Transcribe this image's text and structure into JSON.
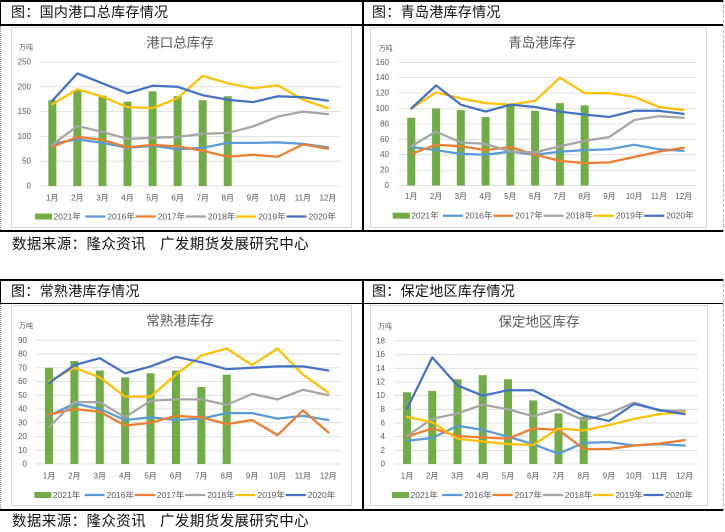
{
  "panels": [
    {
      "caption": "图：国内港口总库存情况"
    },
    {
      "caption": "图：青岛港库存情况"
    },
    {
      "caption": "图：常熟港库存情况"
    },
    {
      "caption": "图：保定地区库存情况"
    }
  ],
  "sources": [
    {
      "label": "数据来源：隆众资讯",
      "org": "广发期货发展研究中心"
    },
    {
      "label": "数据来源：隆众资讯",
      "org": "广发期货发展研究中心"
    }
  ],
  "chart_data": [
    {
      "type": "line",
      "title": "港口总库存",
      "xlabel": "",
      "ylabel": "万吨",
      "categories": [
        "1月",
        "2月",
        "3月",
        "4月",
        "5月",
        "6月",
        "7月",
        "8月",
        "9月",
        "10月",
        "11月",
        "12月"
      ],
      "ylim": [
        0,
        250
      ],
      "yticks": [
        0,
        50,
        100,
        150,
        200,
        250
      ],
      "grid": true,
      "legend": "bottom",
      "series": [
        {
          "name": "2021年",
          "kind": "bar",
          "color": "#70AD47",
          "values": [
            173,
            193,
            182,
            170,
            191,
            181,
            173,
            181,
            null,
            null,
            null,
            null
          ]
        },
        {
          "name": "2016年",
          "kind": "line",
          "color": "#5B9BD5",
          "values": [
            85,
            94,
            87,
            77,
            81,
            74,
            77,
            87,
            87,
            88,
            85,
            78
          ]
        },
        {
          "name": "2017年",
          "kind": "line",
          "color": "#ED7D31",
          "values": [
            79,
            99,
            93,
            78,
            83,
            80,
            71,
            59,
            63,
            59,
            84,
            75
          ]
        },
        {
          "name": "2018年",
          "kind": "line",
          "color": "#A5A5A5",
          "values": [
            83,
            121,
            109,
            95,
            97,
            99,
            105,
            107,
            120,
            140,
            150,
            145
          ]
        },
        {
          "name": "2019年",
          "kind": "line",
          "color": "#FFC000",
          "values": [
            165,
            195,
            180,
            159,
            157,
            177,
            222,
            207,
            197,
            203,
            174,
            157
          ]
        },
        {
          "name": "2020年",
          "kind": "line",
          "color": "#4472C4",
          "values": [
            172,
            227,
            207,
            187,
            202,
            200,
            183,
            174,
            169,
            181,
            179,
            172
          ]
        }
      ]
    },
    {
      "type": "line",
      "title": "青岛港库存",
      "xlabel": "",
      "ylabel": "万吨",
      "categories": [
        "1月",
        "2月",
        "3月",
        "4月",
        "5月",
        "6月",
        "7月",
        "8月",
        "9月",
        "10月",
        "11月",
        "12月"
      ],
      "ylim": [
        0,
        160
      ],
      "yticks": [
        0,
        20,
        40,
        60,
        80,
        100,
        120,
        140,
        160
      ],
      "grid": true,
      "legend": "bottom",
      "series": [
        {
          "name": "2021年",
          "kind": "bar",
          "color": "#70AD47",
          "values": [
            88,
            100,
            98,
            89,
            106,
            97,
            107,
            104,
            null,
            null,
            null,
            null
          ]
        },
        {
          "name": "2016年",
          "kind": "line",
          "color": "#5B9BD5",
          "values": [
            50,
            46,
            41,
            40,
            44,
            40,
            44,
            46,
            47,
            53,
            47,
            45
          ]
        },
        {
          "name": "2017年",
          "kind": "line",
          "color": "#ED7D31",
          "values": [
            41,
            53,
            51,
            46,
            50,
            40,
            32,
            29,
            30,
            37,
            44,
            49
          ]
        },
        {
          "name": "2018年",
          "kind": "line",
          "color": "#A5A5A5",
          "values": [
            51,
            70,
            56,
            54,
            44,
            43,
            51,
            58,
            63,
            85,
            90,
            88
          ]
        },
        {
          "name": "2019年",
          "kind": "line",
          "color": "#FFC000",
          "values": [
            100,
            121,
            113,
            107,
            105,
            110,
            140,
            120,
            120,
            115,
            102,
            98
          ]
        },
        {
          "name": "2020年",
          "kind": "line",
          "color": "#4472C4",
          "values": [
            100,
            130,
            105,
            96,
            105,
            102,
            96,
            92,
            89,
            97,
            97,
            93
          ]
        }
      ]
    },
    {
      "type": "line",
      "title": "常熟港库存",
      "xlabel": "",
      "ylabel": "万吨",
      "categories": [
        "1月",
        "2月",
        "3月",
        "4月",
        "5月",
        "6月",
        "7月",
        "8月",
        "9月",
        "10月",
        "11月",
        "12月"
      ],
      "ylim": [
        0,
        90
      ],
      "yticks": [
        0,
        10,
        20,
        30,
        40,
        50,
        60,
        70,
        80,
        90
      ],
      "grid": true,
      "legend": "bottom",
      "series": [
        {
          "name": "2021年",
          "kind": "bar",
          "color": "#70AD47",
          "values": [
            70,
            75,
            68,
            63,
            66,
            68,
            56,
            65,
            null,
            null,
            null,
            null
          ]
        },
        {
          "name": "2016年",
          "kind": "line",
          "color": "#5B9BD5",
          "values": [
            35,
            44,
            40,
            32,
            34,
            32,
            33,
            37,
            37,
            33,
            35,
            32
          ]
        },
        {
          "name": "2017年",
          "kind": "line",
          "color": "#ED7D31",
          "values": [
            36,
            40,
            38,
            28,
            30,
            35,
            34,
            29,
            32,
            21,
            39,
            23
          ]
        },
        {
          "name": "2018年",
          "kind": "line",
          "color": "#A5A5A5",
          "values": [
            27,
            45,
            45,
            34,
            46,
            47,
            47,
            43,
            51,
            47,
            54,
            50
          ]
        },
        {
          "name": "2019年",
          "kind": "line",
          "color": "#FFC000",
          "values": [
            60,
            70,
            63,
            49,
            49,
            65,
            79,
            84,
            72,
            84,
            65,
            52
          ]
        },
        {
          "name": "2020年",
          "kind": "line",
          "color": "#4472C4",
          "values": [
            59,
            72,
            77,
            66,
            71,
            78,
            74,
            69,
            70,
            71,
            71,
            68
          ]
        }
      ]
    },
    {
      "type": "line",
      "title": "保定地区库存",
      "xlabel": "",
      "ylabel": "万吨",
      "categories": [
        "1月",
        "2月",
        "3月",
        "4月",
        "5月",
        "6月",
        "7月",
        "8月",
        "9月",
        "10月",
        "11月",
        "12月"
      ],
      "ylim": [
        0,
        18
      ],
      "yticks": [
        0,
        2,
        4,
        6,
        8,
        10,
        12,
        14,
        16,
        18
      ],
      "grid": true,
      "legend": "bottom",
      "series": [
        {
          "name": "2021年",
          "kind": "bar",
          "color": "#70AD47",
          "values": [
            10.5,
            10.7,
            12.4,
            13.0,
            12.4,
            9.3,
            7.4,
            6.9,
            null,
            null,
            null,
            null
          ]
        },
        {
          "name": "2016年",
          "kind": "line",
          "color": "#5B9BD5",
          "values": [
            3.4,
            3.8,
            5.6,
            5.0,
            4.0,
            2.9,
            1.5,
            3.1,
            3.2,
            2.7,
            2.9,
            2.7
          ]
        },
        {
          "name": "2017年",
          "kind": "line",
          "color": "#ED7D31",
          "values": [
            4.0,
            5.2,
            4.1,
            3.9,
            3.7,
            5.2,
            5.0,
            2.2,
            2.2,
            2.7,
            3.0,
            3.5
          ]
        },
        {
          "name": "2018年",
          "kind": "line",
          "color": "#A5A5A5",
          "values": [
            4.1,
            6.6,
            7.4,
            8.7,
            8.0,
            7.0,
            8.0,
            6.4,
            7.4,
            9.0,
            7.8,
            7.8
          ]
        },
        {
          "name": "2019年",
          "kind": "line",
          "color": "#FFC000",
          "values": [
            6.9,
            6.1,
            3.7,
            3.3,
            2.9,
            2.8,
            5.2,
            4.9,
            5.7,
            6.6,
            7.3,
            7.6
          ]
        },
        {
          "name": "2020年",
          "kind": "line",
          "color": "#4472C4",
          "values": [
            8.1,
            15.6,
            11.5,
            10.0,
            10.8,
            10.8,
            8.9,
            7.1,
            6.3,
            8.8,
            7.9,
            7.3
          ]
        }
      ]
    }
  ]
}
